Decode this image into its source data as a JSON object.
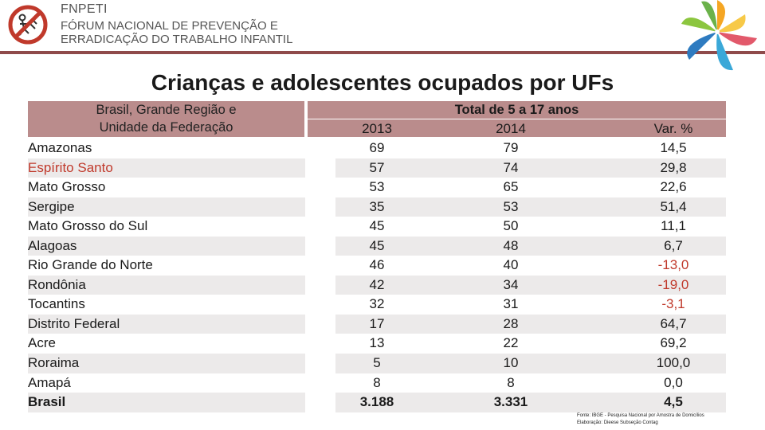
{
  "header": {
    "org_short": "FNPETI",
    "org_full_line1": "FÓRUM NACIONAL DE PREVENÇÃO E",
    "org_full_line2": "ERRADICAÇÃO DO TRABALHO INFANTIL"
  },
  "title": "Crianças e adolescentes ocupados por UFs",
  "table": {
    "col_region_line1": "Brasil, Grande Região e",
    "col_region_line2": "Unidade da Federação",
    "group_header": "Total de 5 a 17 anos",
    "col_2013": "2013",
    "col_2014": "2014",
    "col_var": "Var. %",
    "rows": [
      {
        "name": "Amazonas",
        "y2013": "69",
        "y2014": "79",
        "var": "14,5"
      },
      {
        "name": "Espírito Santo",
        "y2013": "57",
        "y2014": "74",
        "var": "29,8"
      },
      {
        "name": "Mato Grosso",
        "y2013": "53",
        "y2014": "65",
        "var": "22,6"
      },
      {
        "name": "Sergipe",
        "y2013": "35",
        "y2014": "53",
        "var": "51,4"
      },
      {
        "name": "Mato Grosso do Sul",
        "y2013": "45",
        "y2014": "50",
        "var": "11,1"
      },
      {
        "name": "Alagoas",
        "y2013": "45",
        "y2014": "48",
        "var": "6,7"
      },
      {
        "name": "Rio Grande do Norte",
        "y2013": "46",
        "y2014": "40",
        "var": "-13,0"
      },
      {
        "name": "Rondônia",
        "y2013": "42",
        "y2014": "34",
        "var": "-19,0"
      },
      {
        "name": "Tocantins",
        "y2013": "32",
        "y2014": "31",
        "var": "-3,1"
      },
      {
        "name": "Distrito Federal",
        "y2013": "17",
        "y2014": "28",
        "var": "64,7"
      },
      {
        "name": "Acre",
        "y2013": "13",
        "y2014": "22",
        "var": "69,2"
      },
      {
        "name": "Roraima",
        "y2013": "5",
        "y2014": "10",
        "var": "100,0"
      },
      {
        "name": "Amapá",
        "y2013": "8",
        "y2014": "8",
        "var": "0,0"
      },
      {
        "name": "Brasil",
        "y2013": "3.188",
        "y2014": "3.331",
        "var": "4,5"
      }
    ]
  },
  "source": {
    "line1": "Fonte: IBGE - Pesquisa Nacional por Amostra de Domicílios",
    "line2": "Elaboração: Dieese Subseção Contag"
  },
  "colors": {
    "header_band": "#ba8c8c",
    "accent_red": "#c0392b",
    "row_shade": "#eceaea"
  }
}
